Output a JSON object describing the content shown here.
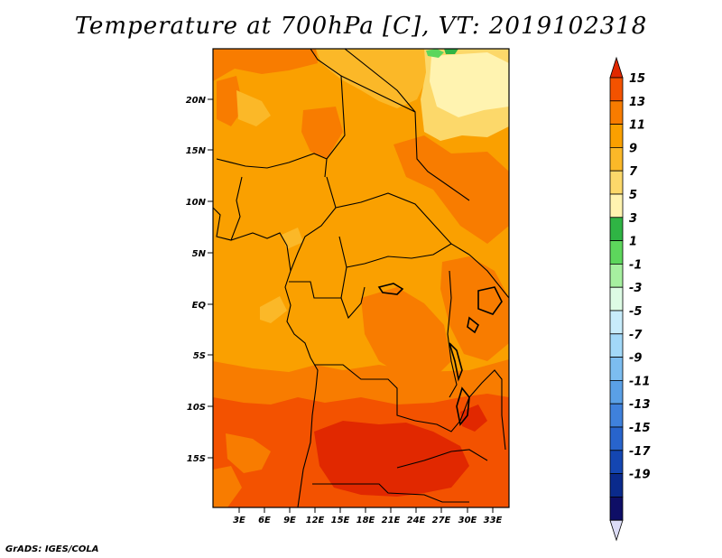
{
  "title": "Temperature at 700hPa [C], VT: 2019102318",
  "credit": "GrADS: IGES/COLA",
  "map": {
    "lat_labels": [
      "20N",
      "15N",
      "10N",
      "5N",
      "EQ",
      "5S",
      "10S",
      "15S"
    ],
    "lon_labels": [
      "3E",
      "6E",
      "9E",
      "12E",
      "15E",
      "18E",
      "21E",
      "24E",
      "27E",
      "30E",
      "33E"
    ]
  },
  "colorbar": {
    "labels": [
      "15",
      "13",
      "11",
      "9",
      "7",
      "5",
      "3",
      "1",
      "-1",
      "-3",
      "-5",
      "-7",
      "-9",
      "-11",
      "-13",
      "-15",
      "-17",
      "-19"
    ],
    "colors": [
      "#e12800",
      "#f35200",
      "#f87c00",
      "#faa000",
      "#fbb828",
      "#fcd86a",
      "#fff3b0",
      "#2fb444",
      "#5dd65c",
      "#a6f0a0",
      "#ddfbe4",
      "#c8ecfb",
      "#a2d8f8",
      "#7cbdf0",
      "#5aa0e6",
      "#3f81dc",
      "#2864cc",
      "#1446b2",
      "#0a2a8c",
      "#0e0e66",
      "#dcdcf6"
    ]
  }
}
